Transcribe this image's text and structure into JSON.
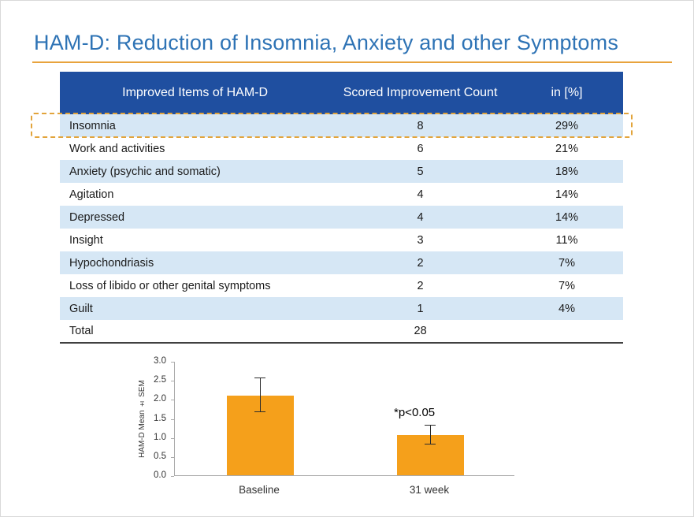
{
  "slide": {
    "title": "HAM-D: Reduction of Insomnia, Anxiety and other Symptoms"
  },
  "table": {
    "headers": [
      "Improved Items of HAM-D",
      "Scored Improvement Count",
      "in [%]"
    ],
    "rows": [
      {
        "item": "Insomnia",
        "count": "8",
        "percent": "29%",
        "highlighted": true
      },
      {
        "item": "Work and activities",
        "count": "6",
        "percent": "21%"
      },
      {
        "item": "Anxiety (psychic and somatic)",
        "count": "5",
        "percent": "18%"
      },
      {
        "item": "Agitation",
        "count": "4",
        "percent": "14%"
      },
      {
        "item": "Depressed",
        "count": "4",
        "percent": "14%"
      },
      {
        "item": "Insight",
        "count": "3",
        "percent": "11%"
      },
      {
        "item": "Hypochondriasis",
        "count": "2",
        "percent": "7%"
      },
      {
        "item": "Loss of libido or other genital symptoms",
        "count": "2",
        "percent": "7%"
      },
      {
        "item": "Guilt",
        "count": "1",
        "percent": "4%"
      },
      {
        "item": "Total",
        "count": "28",
        "percent": ""
      }
    ]
  },
  "chart_data": {
    "type": "bar",
    "categories": [
      "Baseline",
      "31 week"
    ],
    "values": [
      2.1,
      1.05
    ],
    "errors": [
      0.45,
      0.25
    ],
    "annotation": "*p<0.05",
    "title": "",
    "xlabel": "",
    "ylabel": "HAM-D Mean ± SEM",
    "ylim": [
      0.0,
      3.0
    ],
    "yticks": [
      0.0,
      0.5,
      1.0,
      1.5,
      2.0,
      2.5,
      3.0
    ],
    "grid": false,
    "legend": "none",
    "bar_color": "#f5a01b"
  },
  "colors": {
    "title_blue": "#2e73b5",
    "underline_orange": "#e8a33d",
    "table_header_blue": "#1f4fa0",
    "row_stripe_blue": "#d6e7f5",
    "highlight_dash_orange": "#e2a43b",
    "bar_orange": "#f5a01b"
  }
}
